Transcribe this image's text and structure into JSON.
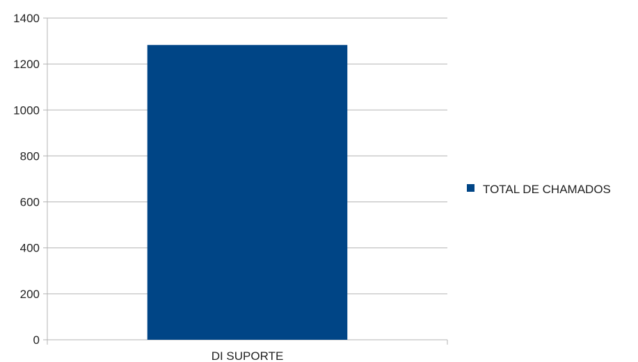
{
  "chart_data": {
    "type": "bar",
    "categories": [
      "DI SUPORTE"
    ],
    "series": [
      {
        "name": "TOTAL DE CHAMADOS",
        "values": [
          1283
        ],
        "color": "#004586"
      }
    ],
    "ylim": [
      0,
      1400
    ],
    "yticks": [
      0,
      200,
      400,
      600,
      800,
      1000,
      1200,
      1400
    ],
    "grid": true,
    "legend_position": "right"
  }
}
